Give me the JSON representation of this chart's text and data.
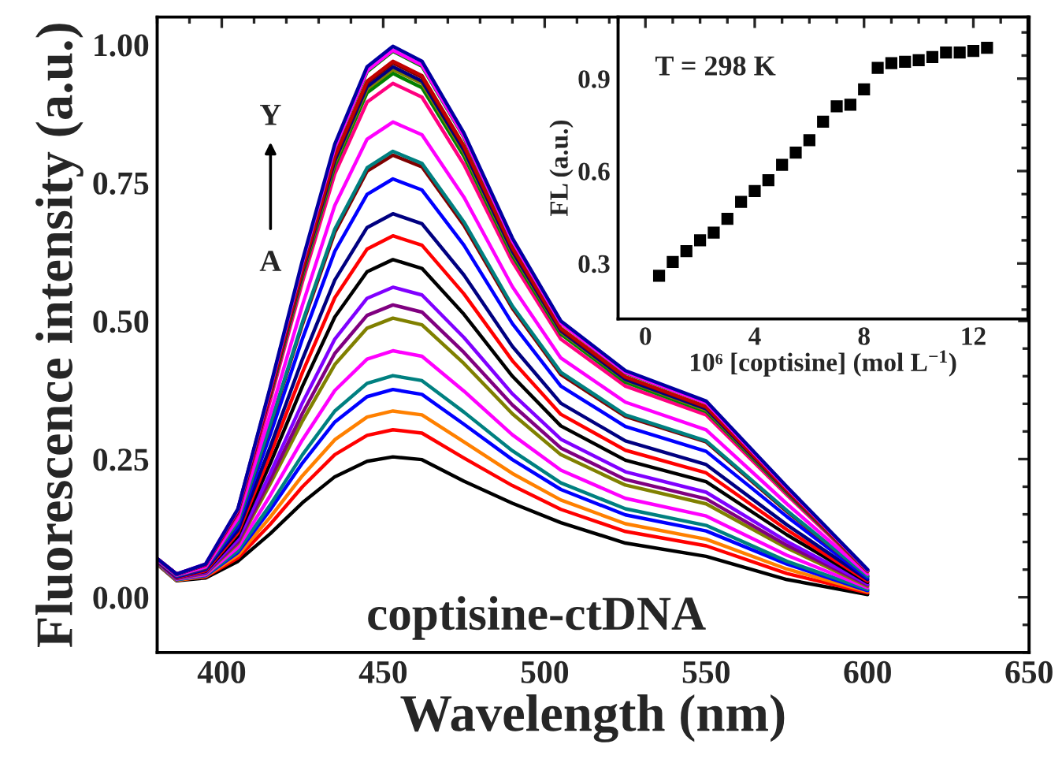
{
  "chart_data": [
    {
      "type": "line",
      "xlabel": "Wavelength (nm)",
      "ylabel": "Fluorescence intensity (a.u.)",
      "xlim": [
        380,
        650
      ],
      "xticks": [
        400,
        450,
        500,
        550,
        600,
        650
      ],
      "ylim": [
        -0.1,
        1.05
      ],
      "yticks": [
        {
          "value": 0,
          "label": "0.00"
        },
        {
          "value": 0.25,
          "label": "0.25"
        },
        {
          "value": 0.5,
          "label": "0.50"
        },
        {
          "value": 0.75,
          "label": "0.75"
        },
        {
          "value": 1,
          "label": "1.00"
        }
      ],
      "marker": "none",
      "line_style": "solid",
      "annotations": [
        "Y",
        "A",
        "coptisine-ctDNA"
      ],
      "x": [
        380,
        386,
        395,
        405,
        415,
        425,
        435,
        445,
        453,
        462,
        475,
        490,
        505,
        525,
        550,
        575,
        600
      ],
      "series": [
        {
          "color": "#000000",
          "values": [
            0.06,
            0.03,
            0.035,
            0.065,
            0.115,
            0.171,
            0.218,
            0.246,
            0.254,
            0.249,
            0.21,
            0.17,
            0.135,
            0.098,
            0.074,
            0.032,
            0.005
          ]
        },
        {
          "color": "#ff0000",
          "values": [
            0.061,
            0.031,
            0.037,
            0.071,
            0.132,
            0.2,
            0.258,
            0.293,
            0.303,
            0.297,
            0.252,
            0.202,
            0.159,
            0.119,
            0.093,
            0.043,
            0.008
          ]
        },
        {
          "color": "#ff8000",
          "values": [
            0.061,
            0.031,
            0.038,
            0.076,
            0.145,
            0.22,
            0.285,
            0.326,
            0.337,
            0.33,
            0.281,
            0.224,
            0.176,
            0.133,
            0.105,
            0.051,
            0.01
          ]
        },
        {
          "color": "#0000ff",
          "values": [
            0.062,
            0.032,
            0.039,
            0.081,
            0.158,
            0.243,
            0.317,
            0.363,
            0.376,
            0.367,
            0.313,
            0.249,
            0.195,
            0.149,
            0.12,
            0.06,
            0.012
          ]
        },
        {
          "color": "#008080",
          "values": [
            0.062,
            0.032,
            0.04,
            0.084,
            0.167,
            0.258,
            0.337,
            0.387,
            0.401,
            0.392,
            0.335,
            0.265,
            0.207,
            0.16,
            0.13,
            0.065,
            0.014
          ]
        },
        {
          "color": "#ff00ff",
          "values": [
            0.063,
            0.033,
            0.041,
            0.09,
            0.184,
            0.285,
            0.374,
            0.431,
            0.446,
            0.436,
            0.373,
            0.294,
            0.23,
            0.179,
            0.147,
            0.076,
            0.017
          ]
        },
        {
          "color": "#808000",
          "values": [
            0.063,
            0.034,
            0.043,
            0.097,
            0.205,
            0.319,
            0.421,
            0.487,
            0.505,
            0.493,
            0.423,
            0.332,
            0.258,
            0.203,
            0.169,
            0.089,
            0.02
          ]
        },
        {
          "color": "#800080",
          "values": [
            0.064,
            0.034,
            0.044,
            0.1,
            0.213,
            0.333,
            0.441,
            0.51,
            0.529,
            0.516,
            0.443,
            0.348,
            0.27,
            0.213,
            0.178,
            0.094,
            0.022
          ]
        },
        {
          "color": "#8000ff",
          "values": [
            0.064,
            0.035,
            0.045,
            0.104,
            0.224,
            0.352,
            0.467,
            0.541,
            0.561,
            0.547,
            0.47,
            0.368,
            0.286,
            0.227,
            0.19,
            0.101,
            0.024
          ]
        },
        {
          "color": "#000000",
          "values": [
            0.065,
            0.036,
            0.047,
            0.111,
            0.242,
            0.382,
            0.507,
            0.589,
            0.611,
            0.595,
            0.512,
            0.4,
            0.31,
            0.248,
            0.209,
            0.113,
            0.027
          ]
        },
        {
          "color": "#ff0000",
          "values": [
            0.065,
            0.036,
            0.048,
            0.116,
            0.258,
            0.407,
            0.542,
            0.63,
            0.654,
            0.637,
            0.549,
            0.428,
            0.331,
            0.266,
            0.225,
            0.122,
            0.029
          ]
        },
        {
          "color": "#000080",
          "values": [
            0.066,
            0.037,
            0.05,
            0.121,
            0.272,
            0.431,
            0.574,
            0.669,
            0.694,
            0.676,
            0.583,
            0.454,
            0.351,
            0.283,
            0.24,
            0.131,
            0.032
          ]
        },
        {
          "color": "#0000ff",
          "values": [
            0.067,
            0.038,
            0.052,
            0.129,
            0.294,
            0.468,
            0.626,
            0.729,
            0.757,
            0.737,
            0.637,
            0.495,
            0.382,
            0.309,
            0.264,
            0.146,
            0.035
          ]
        },
        {
          "color": "#800000",
          "values": [
            0.067,
            0.039,
            0.053,
            0.135,
            0.31,
            0.494,
            0.66,
            0.771,
            0.8,
            0.779,
            0.673,
            0.523,
            0.403,
            0.327,
            0.281,
            0.155,
            0.038
          ]
        },
        {
          "color": "#008080",
          "values": [
            0.067,
            0.039,
            0.054,
            0.136,
            0.312,
            0.498,
            0.666,
            0.777,
            0.807,
            0.785,
            0.679,
            0.527,
            0.407,
            0.33,
            0.283,
            0.157,
            0.038
          ]
        },
        {
          "color": "#ff00ff",
          "values": [
            0.068,
            0.04,
            0.055,
            0.143,
            0.331,
            0.529,
            0.709,
            0.829,
            0.86,
            0.837,
            0.724,
            0.562,
            0.433,
            0.353,
            0.303,
            0.169,
            0.042
          ]
        },
        {
          "color": "#ff0080",
          "values": [
            0.069,
            0.041,
            0.058,
            0.151,
            0.356,
            0.571,
            0.766,
            0.896,
            0.93,
            0.905,
            0.783,
            0.607,
            0.467,
            0.382,
            0.33,
            0.185,
            0.046
          ]
        },
        {
          "color": "#008000",
          "values": [
            null,
            null,
            null,
            null,
            0.363,
            0.581,
            0.78,
            0.913,
            0.948,
            0.922,
            0.798,
            0.618,
            0.476,
            0.389,
            0.336,
            0.189,
            0.047
          ]
        },
        {
          "color": "#808000",
          "values": [
            null,
            null,
            null,
            null,
            0.365,
            0.585,
            0.786,
            0.92,
            0.955,
            0.93,
            0.805,
            0.623,
            0.48,
            0.393,
            0.339,
            0.191,
            0.047
          ]
        },
        {
          "color": "#000080",
          "values": [
            0.07,
            0.041,
            0.059,
            0.155,
            0.367,
            0.588,
            0.79,
            0.924,
            0.96,
            0.934,
            0.809,
            0.626,
            0.482,
            0.394,
            0.341,
            0.192,
            0.048
          ]
        },
        {
          "color": "#800000",
          "values": [
            0.07,
            0.042,
            0.059,
            0.156,
            0.369,
            0.592,
            0.796,
            0.931,
            0.967,
            0.941,
            0.815,
            0.631,
            0.485,
            0.398,
            0.344,
            0.193,
            0.048
          ]
        },
        {
          "color": "#c00000",
          "values": [
            0.07,
            0.042,
            0.059,
            0.157,
            0.37,
            0.594,
            0.798,
            0.934,
            0.97,
            0.944,
            0.817,
            0.633,
            0.487,
            0.399,
            0.345,
            0.194,
            0.048
          ]
        },
        {
          "color": "#008000",
          "values": [
            null,
            null,
            null,
            0.159,
            0.377,
            0.605,
            0.813,
            0.951,
            0.988,
            0.961,
            0.832,
            0.644,
            0.496,
            0.406,
            0.352,
            0.198,
            0.049
          ]
        },
        {
          "color": "#ff00ff",
          "values": [
            0.07,
            0.042,
            0.06,
            0.159,
            0.377,
            0.606,
            0.814,
            0.953,
            0.99,
            0.963,
            0.834,
            0.645,
            0.496,
            0.407,
            0.352,
            0.198,
            0.049
          ]
        },
        {
          "color": "#0000a0",
          "values": [
            0.07,
            0.042,
            0.06,
            0.16,
            0.38,
            0.61,
            0.82,
            0.96,
            0.997,
            0.97,
            0.84,
            0.65,
            0.5,
            0.41,
            0.355,
            0.2,
            0.05
          ]
        }
      ]
    },
    {
      "type": "scatter",
      "xlabel": "10⁶ [coptisine] (mol L$^{−1}$)",
      "ylabel": "FL (a.u.)",
      "xlim": [
        -1,
        14
      ],
      "xticks": [
        0,
        4,
        8,
        12
      ],
      "ylim": [
        0.12,
        1.1
      ],
      "yticks": [
        0.3,
        0.6,
        0.9
      ],
      "marker": "square",
      "annotations": [
        "T = 298 K"
      ],
      "x": [
        0.5,
        1,
        1.5,
        2,
        2.5,
        3,
        3.5,
        4,
        4.5,
        5,
        5.5,
        6,
        6.5,
        7,
        7.5,
        8,
        8.5,
        9,
        9.5,
        10,
        10.5,
        11,
        11.5,
        12,
        12.5
      ],
      "series": [
        {
          "color": "#000000",
          "values": [
            0.26,
            0.305,
            0.34,
            0.375,
            0.4,
            0.445,
            0.5,
            0.535,
            0.57,
            0.62,
            0.66,
            0.7,
            0.76,
            0.81,
            0.815,
            0.865,
            0.935,
            0.95,
            0.955,
            0.96,
            0.97,
            0.985,
            0.985,
            0.99,
            1.0
          ]
        }
      ]
    }
  ]
}
